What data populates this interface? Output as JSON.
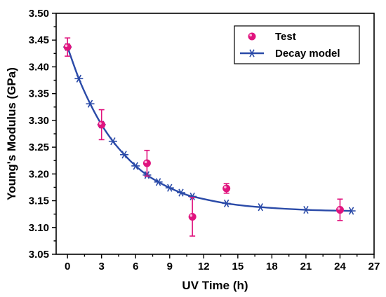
{
  "chart_data": {
    "type": "scatter",
    "xlabel": "UV Time (h)",
    "ylabel": "Young's Modulus (GPa)",
    "xlim": [
      -1,
      27
    ],
    "ylim": [
      3.05,
      3.5
    ],
    "xticks": [
      "0",
      "3",
      "6",
      "9",
      "12",
      "15",
      "18",
      "21",
      "24",
      "27"
    ],
    "yticks": [
      "3.05",
      "3.10",
      "3.15",
      "3.20",
      "3.25",
      "3.30",
      "3.35",
      "3.40",
      "3.45",
      "3.50"
    ],
    "legend_position": "top-right",
    "grid": false,
    "series": [
      {
        "name": "Test",
        "kind": "points-with-error-bars",
        "color": "#e0147e",
        "points": [
          {
            "x": 0,
            "y": 3.437,
            "err": 0.017
          },
          {
            "x": 3,
            "y": 3.292,
            "err": 0.028
          },
          {
            "x": 7,
            "y": 3.22,
            "err": 0.024
          },
          {
            "x": 11,
            "y": 3.12,
            "err": 0.036
          },
          {
            "x": 14,
            "y": 3.173,
            "err": 0.009
          },
          {
            "x": 24,
            "y": 3.133,
            "err": 0.02
          }
        ]
      },
      {
        "name": "Decay model",
        "kind": "line-with-star-markers",
        "color": "#2a4aa8",
        "points": [
          {
            "x": 0,
            "y": 3.437
          },
          {
            "x": 1,
            "y": 3.378
          },
          {
            "x": 2,
            "y": 3.331
          },
          {
            "x": 3,
            "y": 3.292
          },
          {
            "x": 4,
            "y": 3.261
          },
          {
            "x": 5,
            "y": 3.236
          },
          {
            "x": 6,
            "y": 3.215
          },
          {
            "x": 7,
            "y": 3.198
          },
          {
            "x": 8,
            "y": 3.185
          },
          {
            "x": 9,
            "y": 3.174
          },
          {
            "x": 10,
            "y": 3.165
          },
          {
            "x": 11,
            "y": 3.158
          },
          {
            "x": 14,
            "y": 3.145
          },
          {
            "x": 17,
            "y": 3.138
          },
          {
            "x": 21,
            "y": 3.133
          },
          {
            "x": 25,
            "y": 3.131
          }
        ]
      }
    ]
  }
}
